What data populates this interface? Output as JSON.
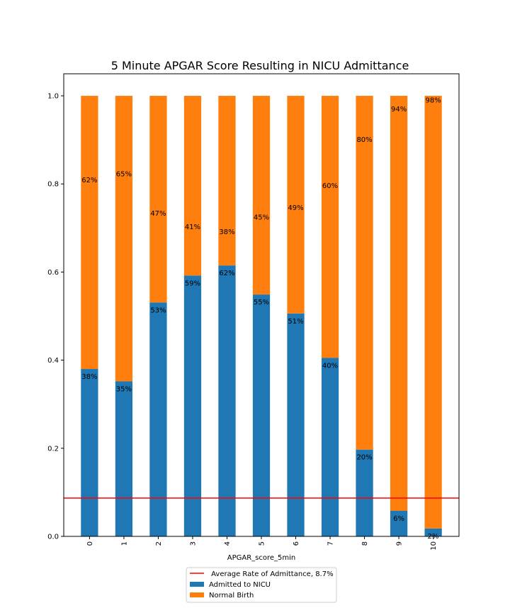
{
  "chart_data": {
    "type": "bar",
    "stacked": true,
    "title": "5 Minute APGAR Score Resulting in NICU Admittance",
    "xlabel": "APGAR_score_5min",
    "ylabel": "",
    "ylim": [
      0,
      1.05
    ],
    "yticks": [
      "0.0",
      "0.2",
      "0.4",
      "0.6",
      "0.8",
      "1.0"
    ],
    "categories": [
      "0",
      "1",
      "2",
      "3",
      "4",
      "5",
      "6",
      "7",
      "8",
      "9",
      "10"
    ],
    "series": [
      {
        "name": "Admitted to NICU",
        "color": "#1f77b4",
        "values": [
          0.38,
          0.352,
          0.531,
          0.592,
          0.615,
          0.549,
          0.506,
          0.405,
          0.197,
          0.058,
          0.018
        ],
        "labels": [
          "38%",
          "35%",
          "53%",
          "59%",
          "62%",
          "55%",
          "51%",
          "40%",
          "20%",
          "6%",
          "2%"
        ]
      },
      {
        "name": "Normal Birth",
        "color": "#ff7f0e",
        "values": [
          0.62,
          0.648,
          0.469,
          0.408,
          0.385,
          0.451,
          0.494,
          0.595,
          0.803,
          0.942,
          0.982
        ],
        "labels": [
          "62%",
          "65%",
          "47%",
          "41%",
          "38%",
          "45%",
          "49%",
          "60%",
          "80%",
          "94%",
          "98%"
        ]
      }
    ],
    "reference_line": {
      "name": " Average Rate of Admittance, 8.7%",
      "value": 0.087,
      "color": "#ff0000"
    },
    "legend_position": "below plot, centered",
    "grid": false
  }
}
